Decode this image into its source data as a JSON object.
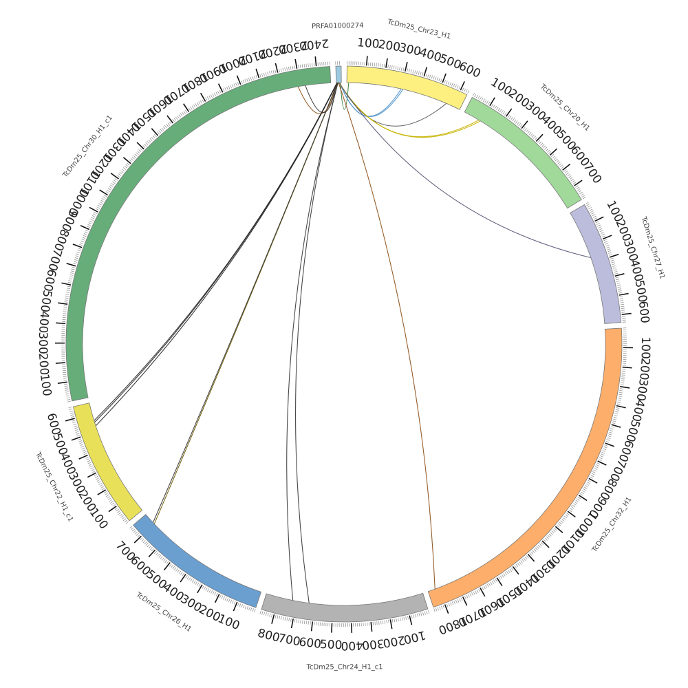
{
  "chromosomes": [
    {
      "id": "PRFA01000274",
      "label": "PRFA01000274",
      "length": 28,
      "color": "#9ecae1",
      "ticks": []
    },
    {
      "id": "chr23",
      "label": "TcDm25_Chr23_H1",
      "length": 640,
      "color": "#fdf080",
      "ticks": [
        100,
        200,
        300,
        400,
        500,
        600
      ]
    },
    {
      "id": "chr20",
      "label": "TcDm25_Chr20_H1",
      "length": 780,
      "color": "#a1d99b",
      "ticks": [
        100,
        200,
        300,
        400,
        500,
        600,
        700
      ]
    },
    {
      "id": "chr27",
      "label": "TcDm25_Chr27_H1",
      "length": 640,
      "color": "#bcbddc",
      "ticks": [
        100,
        200,
        300,
        400,
        500,
        600
      ]
    },
    {
      "id": "chr32",
      "label": "TcDm25_Chr32_H1",
      "length": 1860,
      "color": "#fdae6b",
      "ticks": [
        100,
        200,
        300,
        400,
        500,
        600,
        700,
        800,
        900,
        1000,
        1100,
        1200,
        1300,
        1400,
        1500,
        1600,
        1700,
        1800
      ]
    },
    {
      "id": "chr24",
      "label": "TcDm25_Chr24_H1_c1",
      "length": 870,
      "color": "#b3b3b3",
      "ticks": [
        100,
        200,
        300,
        400,
        500,
        600,
        700,
        800
      ]
    },
    {
      "id": "chr26",
      "label": "TcDm25_Chr26_H1",
      "length": 770,
      "color": "#6a9fd0",
      "ticks": [
        100,
        200,
        300,
        400,
        500,
        600,
        700
      ]
    },
    {
      "id": "chr22",
      "label": "TcDm25_Chr22_H1_c1",
      "length": 660,
      "color": "#e9e05a",
      "ticks": [
        100,
        200,
        300,
        400,
        500,
        600
      ]
    },
    {
      "id": "chr30",
      "label": "TcDm25_Chr30_H1_c1",
      "length": 2470,
      "color": "#66ad7a",
      "ticks": [
        100,
        200,
        300,
        400,
        500,
        600,
        700,
        800,
        900,
        1000,
        1100,
        1200,
        1300,
        1400,
        1500,
        1600,
        1700,
        1800,
        1900,
        2000,
        2100,
        2200,
        2300,
        2400
      ]
    }
  ],
  "links": [
    {
      "from": [
        "PRFA01000274",
        22
      ],
      "to": [
        "chr23",
        10
      ],
      "color": "#2e7d32"
    },
    {
      "from": [
        "PRFA01000274",
        20
      ],
      "to": [
        "chr23",
        300
      ],
      "color": "#4a90c9"
    },
    {
      "from": [
        "PRFA01000274",
        19
      ],
      "to": [
        "chr23",
        310
      ],
      "color": "#4a90c9"
    },
    {
      "from": [
        "PRFA01000274",
        18
      ],
      "to": [
        "chr23",
        560
      ],
      "color": "#555555"
    },
    {
      "from": [
        "PRFA01000274",
        16
      ],
      "to": [
        "chr20",
        90
      ],
      "color": "#c8b400"
    },
    {
      "from": [
        "PRFA01000274",
        15
      ],
      "to": [
        "chr20",
        100
      ],
      "color": "#c8b400"
    },
    {
      "from": [
        "PRFA01000274",
        14
      ],
      "to": [
        "chr27",
        270
      ],
      "color": "#555577"
    },
    {
      "from": [
        "PRFA01000274",
        12
      ],
      "to": [
        "chr32",
        1820
      ],
      "color": "#8a4b14"
    },
    {
      "from": [
        "PRFA01000274",
        10
      ],
      "to": [
        "chr24",
        720
      ],
      "color": "#333333"
    },
    {
      "from": [
        "PRFA01000274",
        9
      ],
      "to": [
        "chr24",
        630
      ],
      "color": "#333333"
    },
    {
      "from": [
        "PRFA01000274",
        8
      ],
      "to": [
        "chr26",
        700
      ],
      "color": "#6b5a00"
    },
    {
      "from": [
        "PRFA01000274",
        7
      ],
      "to": [
        "chr26",
        710
      ],
      "color": "#333333"
    },
    {
      "from": [
        "PRFA01000274",
        6
      ],
      "to": [
        "chr22",
        530
      ],
      "color": "#222222"
    },
    {
      "from": [
        "PRFA01000274",
        5
      ],
      "to": [
        "chr22",
        550
      ],
      "color": "#222222"
    },
    {
      "from": [
        "PRFA01000274",
        4
      ],
      "to": [
        "chr22",
        560
      ],
      "color": "#222222"
    },
    {
      "from": [
        "PRFA01000274",
        3
      ],
      "to": [
        "chr30",
        2290
      ],
      "color": "#8a4b14"
    },
    {
      "from": [
        "PRFA01000274",
        2
      ],
      "to": [
        "chr30",
        2330
      ],
      "color": "#333333"
    }
  ]
}
